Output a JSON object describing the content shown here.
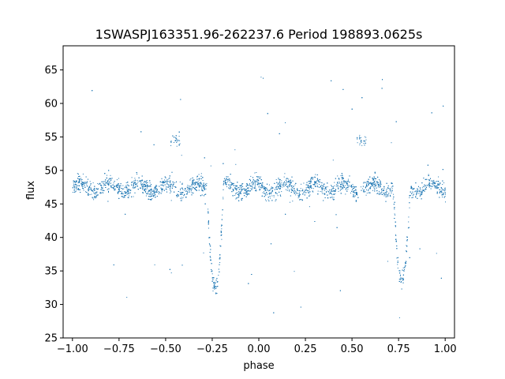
{
  "chart_data": {
    "type": "scatter",
    "title": "1SWASPJ163351.96-262237.6 Period 198893.0625s",
    "xlabel": "phase",
    "ylabel": "flux",
    "xlim": [
      -1.05,
      1.05
    ],
    "ylim": [
      25,
      68.6
    ],
    "x_ticks": [
      -1.0,
      -0.75,
      -0.5,
      -0.25,
      0.0,
      0.25,
      0.5,
      0.75,
      1.0
    ],
    "x_tick_labels": [
      "−1.00",
      "−0.75",
      "−0.50",
      "−0.25",
      "0.00",
      "0.25",
      "0.50",
      "0.75",
      "1.00"
    ],
    "y_ticks": [
      25,
      30,
      35,
      40,
      45,
      50,
      55,
      60,
      65
    ],
    "y_tick_labels": [
      "25",
      "30",
      "35",
      "40",
      "45",
      "50",
      "55",
      "60",
      "65"
    ],
    "grid": false,
    "marker_color": "#1f77b4",
    "series": [
      {
        "baseline_flux": 47.5,
        "eclipse_centers": [
          -0.235,
          0.765
        ],
        "eclipse_min_flux": 33,
        "eclipse_half_width": 0.045,
        "bump_centers": [
          -0.45,
          0.55
        ],
        "bump_flux": 54.5,
        "point_count": 5600
      }
    ]
  }
}
